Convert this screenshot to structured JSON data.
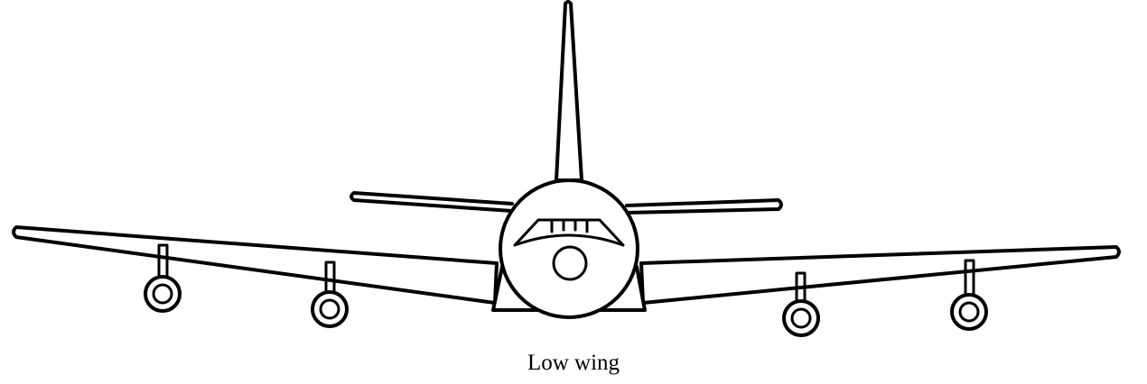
{
  "caption": "Low wing",
  "colors": {
    "line": "#000000",
    "background": "#ffffff"
  }
}
